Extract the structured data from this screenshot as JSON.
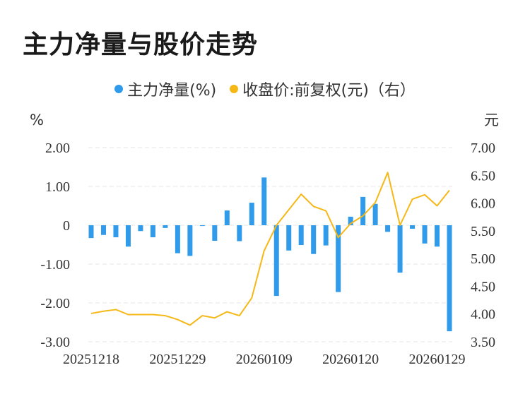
{
  "title": "主力净量与股价走势",
  "colors": {
    "bar": "#2f9bea",
    "line": "#f5b817",
    "grid": "#e6e6e6"
  },
  "chart_data": {
    "type": "bar+line",
    "legend": [
      {
        "name": "主力净量(%)",
        "color": "#2f9bea"
      },
      {
        "name": "收盘价:前复权(元)（右）",
        "color": "#f5b817"
      }
    ],
    "left_unit": "%",
    "right_unit": "元",
    "left_ylim": [
      -3,
      2
    ],
    "right_ylim": [
      3.5,
      7.0
    ],
    "left_ticks": [
      "2.00",
      "1.00",
      "0",
      "-1.00",
      "-2.00",
      "-3.00"
    ],
    "right_ticks": [
      "7.00",
      "6.50",
      "6.00",
      "5.50",
      "5.00",
      "4.50",
      "4.00",
      "3.50"
    ],
    "x_tick_labels": [
      {
        "index": 0,
        "label": "20251218"
      },
      {
        "index": 7,
        "label": "20251229"
      },
      {
        "index": 14,
        "label": "20260109"
      },
      {
        "index": 21,
        "label": "20260120"
      },
      {
        "index": 28,
        "label": "20260129"
      }
    ],
    "series": [
      {
        "name": "主力净量(%)",
        "type": "bar",
        "values": [
          -0.33,
          -0.25,
          -0.31,
          -0.55,
          -0.15,
          -0.31,
          -0.07,
          -0.72,
          -0.79,
          -0.02,
          -0.4,
          0.38,
          -0.41,
          0.58,
          1.23,
          -1.82,
          -0.65,
          -0.51,
          -0.74,
          -0.52,
          -1.72,
          0.22,
          0.73,
          0.55,
          -0.17,
          -1.22,
          -0.09,
          -0.47,
          -0.55,
          -2.73
        ]
      },
      {
        "name": "收盘价:前复权(元)",
        "type": "line",
        "axis": "right",
        "values": [
          4.01,
          4.05,
          4.08,
          3.99,
          3.99,
          3.99,
          3.97,
          3.9,
          3.8,
          3.97,
          3.93,
          4.04,
          3.97,
          4.29,
          5.14,
          5.6,
          5.88,
          6.16,
          5.94,
          5.86,
          5.38,
          5.63,
          5.77,
          6.01,
          6.55,
          5.6,
          6.07,
          6.15,
          5.95,
          6.23
        ]
      }
    ]
  }
}
